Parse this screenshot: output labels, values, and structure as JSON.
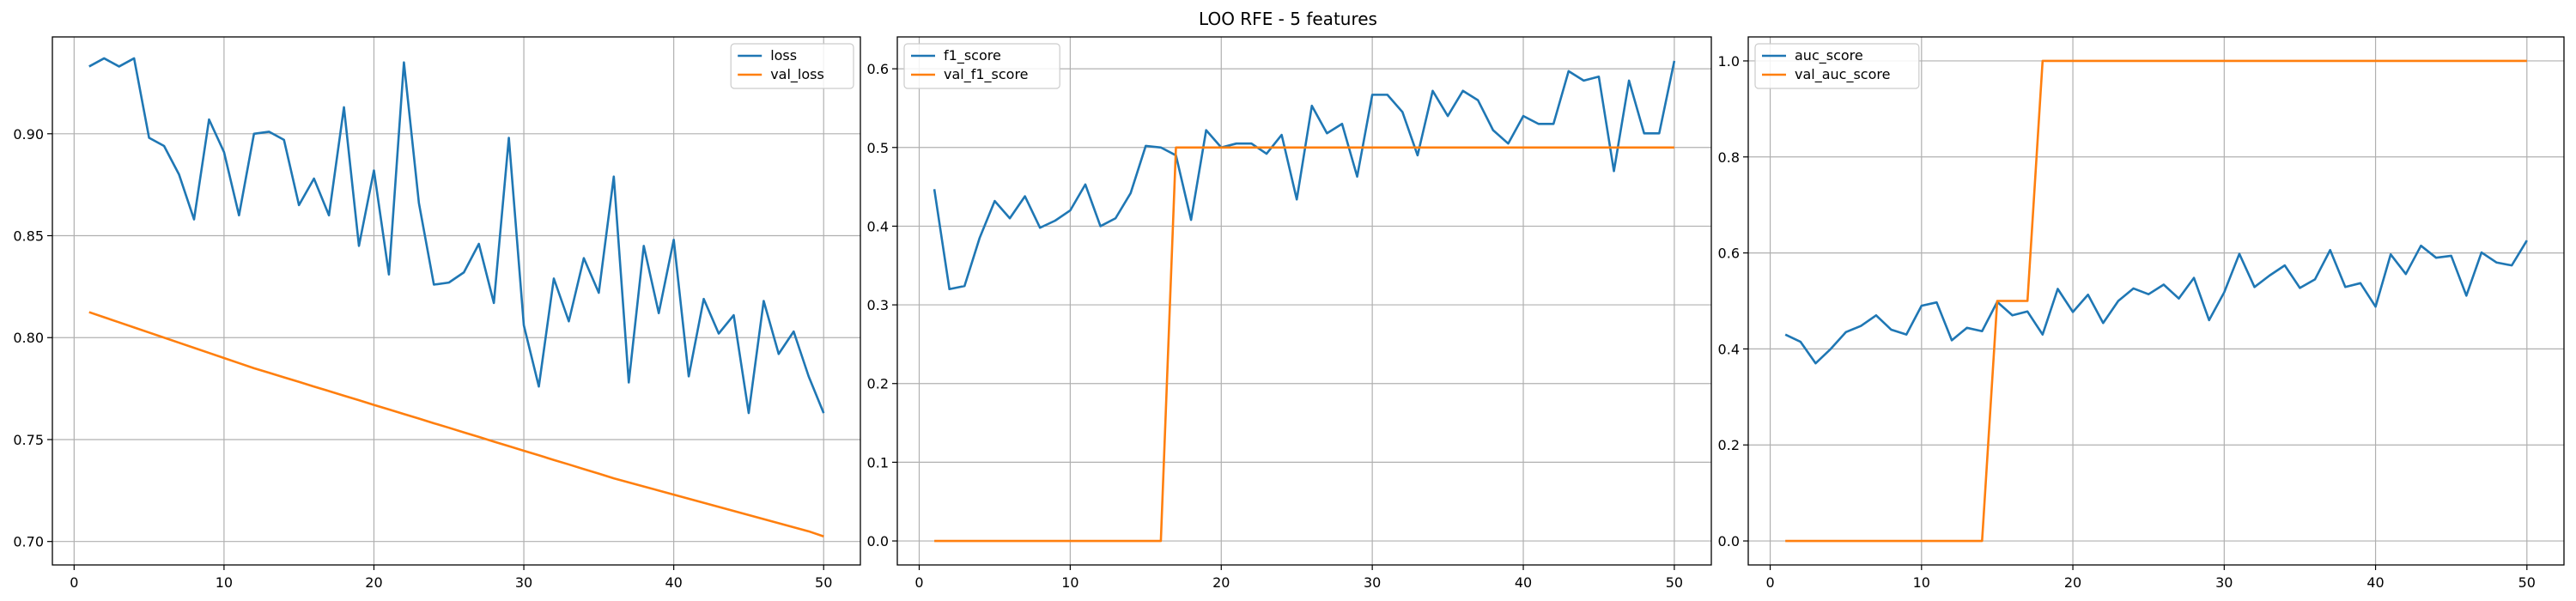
{
  "suptitle": "LOO RFE - 5 features",
  "colors": {
    "series1": "#1f77b4",
    "series2": "#ff7f0e",
    "grid": "#b0b0b0"
  },
  "chart_data": [
    {
      "type": "line",
      "title": "",
      "xlabel": "",
      "ylabel": "",
      "xlim": [
        -1.45,
        52.45
      ],
      "ylim": [
        0.6885,
        0.9475
      ],
      "xticks": [
        0,
        10,
        20,
        30,
        40,
        50
      ],
      "yticks": [
        0.7,
        0.75,
        0.8,
        0.85,
        0.9
      ],
      "ytick_labels": [
        "0.70",
        "0.75",
        "0.80",
        "0.85",
        "0.90"
      ],
      "grid": true,
      "legend": "top-right",
      "x": [
        1,
        2,
        3,
        4,
        5,
        6,
        7,
        8,
        9,
        10,
        11,
        12,
        13,
        14,
        15,
        16,
        17,
        18,
        19,
        20,
        21,
        22,
        23,
        24,
        25,
        26,
        27,
        28,
        29,
        30,
        31,
        32,
        33,
        34,
        35,
        36,
        37,
        38,
        39,
        40,
        41,
        42,
        43,
        44,
        45,
        46,
        47,
        48,
        49,
        50
      ],
      "series": [
        {
          "name": "loss",
          "values": [
            0.933,
            0.937,
            0.933,
            0.937,
            0.898,
            0.894,
            0.88,
            0.858,
            0.907,
            0.891,
            0.86,
            0.9,
            0.901,
            0.897,
            0.865,
            0.878,
            0.86,
            0.913,
            0.845,
            0.882,
            0.831,
            0.935,
            0.866,
            0.826,
            0.827,
            0.832,
            0.846,
            0.817,
            0.898,
            0.806,
            0.776,
            0.829,
            0.808,
            0.839,
            0.822,
            0.879,
            0.778,
            0.845,
            0.812,
            0.848,
            0.781,
            0.819,
            0.802,
            0.811,
            0.763,
            0.818,
            0.792,
            0.803,
            0.781,
            0.763
          ]
        },
        {
          "name": "val_loss",
          "values": [
            0.8125,
            0.81,
            0.8075,
            0.805,
            0.8025,
            0.8,
            0.7975,
            0.795,
            0.7925,
            0.79,
            0.7875,
            0.785,
            0.7828,
            0.7805,
            0.7783,
            0.776,
            0.7738,
            0.7715,
            0.7693,
            0.767,
            0.7648,
            0.7625,
            0.7603,
            0.758,
            0.7558,
            0.7535,
            0.7513,
            0.749,
            0.7468,
            0.7445,
            0.7423,
            0.74,
            0.7378,
            0.7355,
            0.7333,
            0.731,
            0.729,
            0.727,
            0.725,
            0.723,
            0.721,
            0.719,
            0.717,
            0.715,
            0.713,
            0.711,
            0.709,
            0.707,
            0.705,
            0.7025
          ]
        }
      ]
    },
    {
      "type": "line",
      "title": "",
      "xlabel": "",
      "ylabel": "",
      "xlim": [
        -1.45,
        52.45
      ],
      "ylim": [
        -0.0305,
        0.6405
      ],
      "xticks": [
        0,
        10,
        20,
        30,
        40,
        50
      ],
      "yticks": [
        0.0,
        0.1,
        0.2,
        0.3,
        0.4,
        0.5,
        0.6
      ],
      "ytick_labels": [
        "0.0",
        "0.1",
        "0.2",
        "0.3",
        "0.4",
        "0.5",
        "0.6"
      ],
      "grid": true,
      "legend": "top-left",
      "x": [
        1,
        2,
        3,
        4,
        5,
        6,
        7,
        8,
        9,
        10,
        11,
        12,
        13,
        14,
        15,
        16,
        17,
        18,
        19,
        20,
        21,
        22,
        23,
        24,
        25,
        26,
        27,
        28,
        29,
        30,
        31,
        32,
        33,
        34,
        35,
        36,
        37,
        38,
        39,
        40,
        41,
        42,
        43,
        44,
        45,
        46,
        47,
        48,
        49,
        50
      ],
      "series": [
        {
          "name": "f1_score",
          "values": [
            0.447,
            0.32,
            0.324,
            0.385,
            0.432,
            0.41,
            0.438,
            0.398,
            0.407,
            0.42,
            0.453,
            0.4,
            0.41,
            0.442,
            0.502,
            0.5,
            0.49,
            0.408,
            0.522,
            0.5,
            0.505,
            0.505,
            0.492,
            0.516,
            0.434,
            0.553,
            0.518,
            0.53,
            0.463,
            0.567,
            0.567,
            0.545,
            0.49,
            0.572,
            0.54,
            0.572,
            0.56,
            0.522,
            0.505,
            0.54,
            0.53,
            0.53,
            0.597,
            0.585,
            0.59,
            0.47,
            0.585,
            0.518,
            0.518,
            0.61
          ]
        },
        {
          "name": "val_f1_score",
          "values": [
            0,
            0,
            0,
            0,
            0,
            0,
            0,
            0,
            0,
            0,
            0,
            0,
            0,
            0,
            0,
            0,
            0.5,
            0.5,
            0.5,
            0.5,
            0.5,
            0.5,
            0.5,
            0.5,
            0.5,
            0.5,
            0.5,
            0.5,
            0.5,
            0.5,
            0.5,
            0.5,
            0.5,
            0.5,
            0.5,
            0.5,
            0.5,
            0.5,
            0.5,
            0.5,
            0.5,
            0.5,
            0.5,
            0.5,
            0.5,
            0.5,
            0.5,
            0.5,
            0.5,
            0.5
          ]
        }
      ]
    },
    {
      "type": "line",
      "title": "",
      "xlabel": "",
      "ylabel": "",
      "xlim": [
        -1.45,
        52.45
      ],
      "ylim": [
        -0.05,
        1.05
      ],
      "xticks": [
        0,
        10,
        20,
        30,
        40,
        50
      ],
      "yticks": [
        0.0,
        0.2,
        0.4,
        0.6,
        0.8,
        1.0
      ],
      "ytick_labels": [
        "0.0",
        "0.2",
        "0.4",
        "0.6",
        "0.8",
        "1.0"
      ],
      "grid": true,
      "legend": "top-left",
      "x": [
        1,
        2,
        3,
        4,
        5,
        6,
        7,
        8,
        9,
        10,
        11,
        12,
        13,
        14,
        15,
        16,
        17,
        18,
        19,
        20,
        21,
        22,
        23,
        24,
        25,
        26,
        27,
        28,
        29,
        30,
        31,
        32,
        33,
        34,
        35,
        36,
        37,
        38,
        39,
        40,
        41,
        42,
        43,
        44,
        45,
        46,
        47,
        48,
        49,
        50
      ],
      "series": [
        {
          "name": "auc_score",
          "values": [
            0.43,
            0.415,
            0.37,
            0.4,
            0.435,
            0.448,
            0.47,
            0.44,
            0.43,
            0.49,
            0.497,
            0.418,
            0.444,
            0.437,
            0.498,
            0.47,
            0.478,
            0.43,
            0.525,
            0.477,
            0.513,
            0.454,
            0.5,
            0.526,
            0.514,
            0.534,
            0.505,
            0.548,
            0.46,
            0.518,
            0.598,
            0.529,
            0.553,
            0.574,
            0.527,
            0.545,
            0.606,
            0.529,
            0.537,
            0.488,
            0.597,
            0.556,
            0.615,
            0.59,
            0.594,
            0.511,
            0.601,
            0.58,
            0.574,
            0.626
          ]
        },
        {
          "name": "val_auc_score",
          "values": [
            0,
            0,
            0,
            0,
            0,
            0,
            0,
            0,
            0,
            0,
            0,
            0,
            0,
            0,
            0.5,
            0.5,
            0.5,
            1,
            1,
            1,
            1,
            1,
            1,
            1,
            1,
            1,
            1,
            1,
            1,
            1,
            1,
            1,
            1,
            1,
            1,
            1,
            1,
            1,
            1,
            1,
            1,
            1,
            1,
            1,
            1,
            1,
            1,
            1,
            1,
            1
          ]
        }
      ]
    }
  ]
}
